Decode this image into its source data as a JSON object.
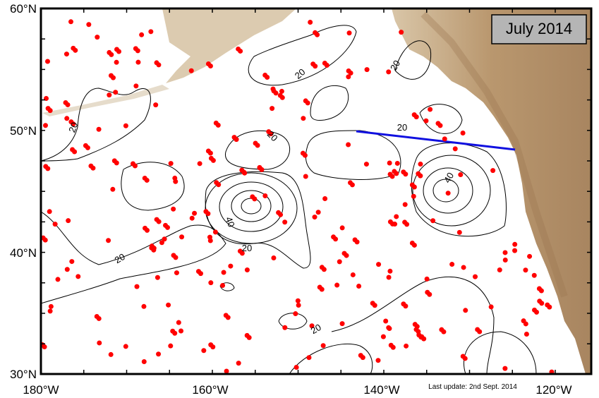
{
  "map": {
    "title": "July 2014",
    "update_note": "Last update: 2nd Sept. 2014",
    "lat_labels": [
      "60°N",
      "50°N",
      "40°N",
      "30°N"
    ],
    "lon_labels": [
      "180°W",
      "160°W",
      "140°W",
      "120°W"
    ],
    "contour_labels": [
      "20",
      "20",
      "20",
      "20",
      "40",
      "20",
      "20",
      "40",
      "20",
      "20"
    ]
  }
}
